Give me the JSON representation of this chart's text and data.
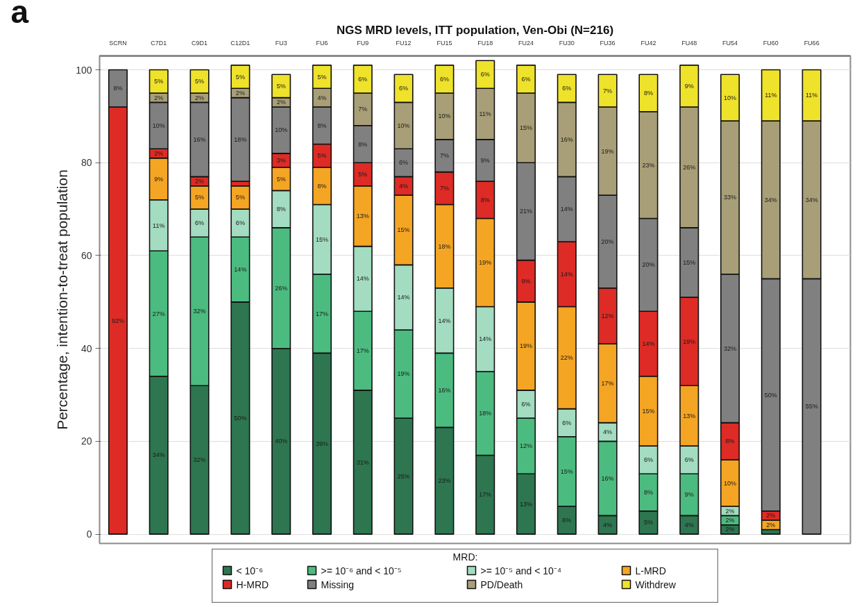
{
  "chart_data": {
    "type": "bar",
    "stacked": true,
    "title": "NGS MRD levels, ITT population, Ven-Obi (N=216)",
    "ylabel": "Percentage, intention-to-treat population",
    "legend_title": "MRD:",
    "annotations": [
      "a"
    ],
    "categories": [
      "SCRN",
      "C7D1",
      "C9D1",
      "C12D1",
      "FU3",
      "FU6",
      "FU9",
      "FU12",
      "FU15",
      "FU18",
      "FU24",
      "FU30",
      "FU36",
      "FU42",
      "FU48",
      "FU54",
      "FU60",
      "FU66"
    ],
    "ylim": [
      -2,
      103
    ],
    "yticks": [
      0,
      20,
      40,
      60,
      80,
      100
    ],
    "grid": "y",
    "legend": "bottom",
    "series": [
      {
        "name": "< 10⁻⁶",
        "color": "#2d7650",
        "values": [
          null,
          34,
          32,
          50,
          40,
          39,
          31,
          25,
          23,
          17,
          13,
          6,
          4,
          5,
          4,
          2,
          1,
          null
        ],
        "value_labels": [
          null,
          "34%",
          "32%",
          "50%",
          "40%",
          "39%",
          "31%",
          "25%",
          "23%",
          "17%",
          "13%",
          "6%",
          "4%",
          "5%",
          "4%",
          "2%",
          null,
          null
        ]
      },
      {
        "name": ">= 10⁻⁶ and < 10⁻⁵",
        "color": "#4cbb7f",
        "values": [
          null,
          27,
          32,
          14,
          26,
          17,
          17,
          19,
          16,
          18,
          12,
          15,
          16,
          8,
          9,
          2,
          null,
          null
        ],
        "value_labels": [
          null,
          "27%",
          "32%",
          "14%",
          "26%",
          "17%",
          "17%",
          "19%",
          "16%",
          "18%",
          "12%",
          "15%",
          "16%",
          "8%",
          "9%",
          "2%",
          null,
          null
        ]
      },
      {
        "name": ">= 10⁻⁵ and < 10⁻⁴",
        "color": "#a3dcc0",
        "values": [
          null,
          11,
          6,
          6,
          8,
          15,
          14,
          14,
          14,
          14,
          6,
          6,
          4,
          6,
          6,
          2,
          null,
          null
        ],
        "value_labels": [
          null,
          "11%",
          "6%",
          "6%",
          "8%",
          "15%",
          "14%",
          "14%",
          "14%",
          "14%",
          "6%",
          "6%",
          "4%",
          "6%",
          "6%",
          "2%",
          null,
          null
        ]
      },
      {
        "name": "L-MRD",
        "color": "#f5a524",
        "values": [
          null,
          9,
          5,
          5,
          5,
          8,
          13,
          15,
          18,
          19,
          19,
          22,
          17,
          15,
          13,
          10,
          2,
          null
        ],
        "value_labels": [
          null,
          "9%",
          "5%",
          "5%",
          "5%",
          "8%",
          "13%",
          "15%",
          "18%",
          "19%",
          "19%",
          "22%",
          "17%",
          "15%",
          "13%",
          "10%",
          "2%",
          null
        ]
      },
      {
        "name": "H-MRD",
        "color": "#de2b26",
        "values": [
          92,
          2,
          2,
          1,
          3,
          5,
          5,
          4,
          7,
          8,
          9,
          14,
          12,
          14,
          19,
          8,
          2,
          null
        ],
        "value_labels": [
          "92%",
          "2%",
          "2%",
          null,
          "3%",
          "5%",
          "5%",
          "4%",
          "7%",
          "8%",
          "9%",
          "14%",
          "12%",
          "14%",
          "19%",
          "8%",
          "2%",
          null
        ]
      },
      {
        "name": "Missing",
        "color": "#808080",
        "values": [
          8,
          10,
          16,
          18,
          10,
          8,
          8,
          6,
          7,
          9,
          21,
          14,
          20,
          20,
          15,
          32,
          50,
          55
        ],
        "value_labels": [
          "8%",
          "10%",
          "16%",
          "18%",
          "10%",
          "8%",
          "8%",
          "6%",
          "7%",
          "9%",
          "21%",
          "14%",
          "20%",
          "20%",
          "15%",
          "32%",
          "50%",
          "55%"
        ]
      },
      {
        "name": "PD/Death",
        "color": "#a89f78",
        "values": [
          null,
          2,
          2,
          2,
          2,
          4,
          7,
          10,
          10,
          11,
          15,
          16,
          19,
          23,
          26,
          33,
          34,
          34
        ],
        "value_labels": [
          null,
          "2%",
          "2%",
          "2%",
          "2%",
          "4%",
          "7%",
          "10%",
          "10%",
          "11%",
          "15%",
          "16%",
          "19%",
          "23%",
          "26%",
          "33%",
          "34%",
          "34%"
        ]
      },
      {
        "name": "Withdrew",
        "color": "#efe22a",
        "values": [
          null,
          5,
          5,
          5,
          5,
          5,
          6,
          6,
          6,
          6,
          6,
          6,
          7,
          8,
          9,
          10,
          11,
          11
        ],
        "value_labels": [
          null,
          "5%",
          "5%",
          "5%",
          "5%",
          "5%",
          "6%",
          "6%",
          "6%",
          "6%",
          "6%",
          "6%",
          "7%",
          "8%",
          "9%",
          "10%",
          "11%",
          "11%"
        ]
      }
    ]
  }
}
